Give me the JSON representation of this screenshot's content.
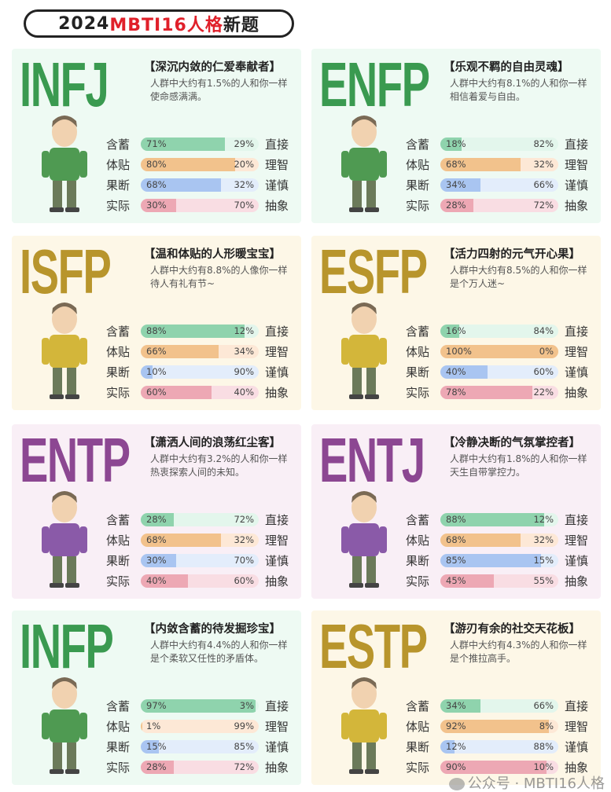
{
  "header": {
    "year": "2024",
    "highlight": "MBTI16人格",
    "suffix": "新题"
  },
  "traits": {
    "left": [
      "含蓄",
      "体贴",
      "果断",
      "实际"
    ],
    "right": [
      "直接",
      "理智",
      "谨慎",
      "抽象"
    ]
  },
  "bar_colors": [
    {
      "fill": "#8fd3ad",
      "bg": "#e3f6ec"
    },
    {
      "fill": "#f2c28c",
      "bg": "#fde8d6"
    },
    {
      "fill": "#a9c5f1",
      "bg": "#e3edfb"
    },
    {
      "fill": "#eda8b4",
      "bg": "#f9dde3"
    }
  ],
  "type_colors": {
    "green": "#3a9a50",
    "gold": "#b8952c",
    "purple": "#8c4792"
  },
  "panels": [
    {
      "type": "INFJ",
      "theme": "green",
      "tagline": "【深沉内敛的仁爱奉献者】",
      "desc": "人群中大约有1.5%的人和你一样使命感满满。",
      "values": [
        71,
        80,
        68,
        30
      ]
    },
    {
      "type": "ENFP",
      "theme": "green",
      "tagline": "【乐观不羁的自由灵魂】",
      "desc": "人群中大约有8.1%的人和你一样相信着爱与自由。",
      "values": [
        18,
        68,
        34,
        28
      ]
    },
    {
      "type": "ISFP",
      "theme": "gold",
      "tagline": "【温和体贴的人形暖宝宝】",
      "desc": "人群中大约有8.8%的人像你一样待人有礼有节~",
      "values": [
        88,
        66,
        10,
        60
      ]
    },
    {
      "type": "ESFP",
      "theme": "gold",
      "tagline": "【活力四射的元气开心果】",
      "desc": "人群中大约有8.5%的人和你一样是个万人迷~",
      "values": [
        16,
        100,
        40,
        78
      ]
    },
    {
      "type": "ENTP",
      "theme": "purple",
      "tagline": "【潇洒人间的浪荡红尘客】",
      "desc": "人群中大约有3.2%的人和你一样热衷探索人间的未知。",
      "values": [
        28,
        68,
        30,
        40
      ]
    },
    {
      "type": "ENTJ",
      "theme": "purple",
      "tagline": "【冷静决断的气氛掌控者】",
      "desc": "人群中大约有1.8%的人和你一样天生自带掌控力。",
      "values": [
        88,
        68,
        85,
        45
      ]
    },
    {
      "type": "INFP",
      "theme": "green",
      "tagline": "【内敛含蓄的待发掘珍宝】",
      "desc": "人群中大约有4.4%的人和你一样是个柔软又任性的矛盾体。",
      "values": [
        97,
        1,
        15,
        28
      ]
    },
    {
      "type": "ESTP",
      "theme": "gold",
      "tagline": "【游刃有余的社交天花板】",
      "desc": "人群中大约有4.3%的人和你一样是个推拉高手。",
      "values": [
        34,
        92,
        12,
        90
      ]
    }
  ],
  "watermark": "公众号 · MBTI16人格"
}
